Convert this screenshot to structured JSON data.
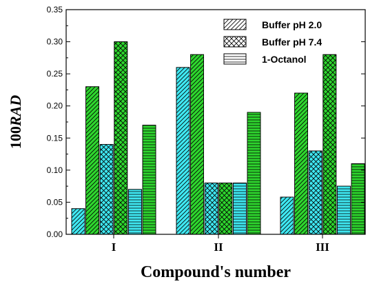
{
  "chart_data": {
    "type": "bar",
    "categories": [
      "I",
      "II",
      "III"
    ],
    "series": [
      {
        "name": "Buffer pH 2.0",
        "values": [
          0.04,
          0.26,
          0.058
        ]
      },
      {
        "values": [
          0.23,
          0.28,
          0.22
        ]
      },
      {
        "name": "Buffer pH 7.4",
        "values": [
          0.14,
          0.08,
          0.13
        ]
      },
      {
        "values": [
          0.3,
          0.08,
          0.28
        ]
      },
      {
        "name": "1-Octanol",
        "values": [
          0.07,
          0.08,
          0.075
        ]
      },
      {
        "values": [
          0.17,
          0.19,
          0.11
        ]
      }
    ],
    "xlabel": "Compound's number",
    "ylabel_prefix": "100",
    "ylabel_italic": "RAD",
    "ylim": [
      0,
      0.35
    ],
    "yticks": [
      "0.00",
      "0.05",
      "0.10",
      "0.15",
      "0.20",
      "0.25",
      "0.30",
      "0.35"
    ],
    "legend_position": "top-right",
    "grid": false,
    "colors": {
      "cyan": "#3fe8f2",
      "green": "#2ed62e",
      "edge": "#000000"
    }
  }
}
